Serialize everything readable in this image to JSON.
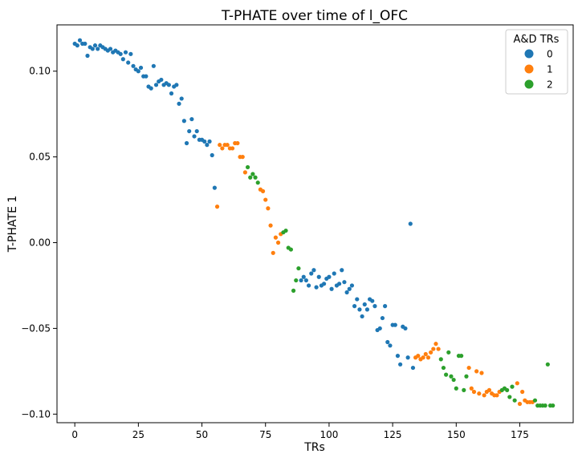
{
  "chart_data": {
    "type": "scatter",
    "title": "T-PHATE over time of l_OFC",
    "xlabel": "TRs",
    "ylabel": "T-PHATE 1",
    "xlim": [
      -7,
      196
    ],
    "ylim": [
      -0.105,
      0.127
    ],
    "xticks": [
      0,
      25,
      50,
      75,
      100,
      125,
      150,
      175
    ],
    "xtick_labels": [
      "0",
      "25",
      "50",
      "75",
      "100",
      "125",
      "150",
      "175"
    ],
    "yticks": [
      -0.1,
      -0.05,
      0.0,
      0.05,
      0.1
    ],
    "ytick_labels": [
      "−0.10",
      "−0.05",
      "0.00",
      "0.05",
      "0.10"
    ],
    "grid": false,
    "legend": {
      "title": "A&D TRs",
      "placement": "top-right"
    },
    "series": [
      {
        "name": "0",
        "color": "#1f77b4",
        "points": [
          [
            0,
            0.116
          ],
          [
            1,
            0.115
          ],
          [
            2,
            0.118
          ],
          [
            3,
            0.116
          ],
          [
            4,
            0.116
          ],
          [
            5,
            0.109
          ],
          [
            6,
            0.114
          ],
          [
            7,
            0.113
          ],
          [
            8,
            0.115
          ],
          [
            9,
            0.113
          ],
          [
            10,
            0.115
          ],
          [
            11,
            0.114
          ],
          [
            12,
            0.113
          ],
          [
            13,
            0.112
          ],
          [
            14,
            0.113
          ],
          [
            15,
            0.111
          ],
          [
            16,
            0.112
          ],
          [
            17,
            0.111
          ],
          [
            18,
            0.11
          ],
          [
            19,
            0.107
          ],
          [
            20,
            0.111
          ],
          [
            21,
            0.105
          ],
          [
            22,
            0.11
          ],
          [
            23,
            0.103
          ],
          [
            24,
            0.101
          ],
          [
            25,
            0.1
          ],
          [
            26,
            0.102
          ],
          [
            27,
            0.097
          ],
          [
            28,
            0.097
          ],
          [
            29,
            0.091
          ],
          [
            30,
            0.09
          ],
          [
            31,
            0.103
          ],
          [
            32,
            0.092
          ],
          [
            33,
            0.094
          ],
          [
            34,
            0.095
          ],
          [
            35,
            0.092
          ],
          [
            36,
            0.093
          ],
          [
            37,
            0.092
          ],
          [
            38,
            0.087
          ],
          [
            39,
            0.091
          ],
          [
            40,
            0.092
          ],
          [
            41,
            0.081
          ],
          [
            42,
            0.084
          ],
          [
            43,
            0.071
          ],
          [
            44,
            0.058
          ],
          [
            45,
            0.065
          ],
          [
            46,
            0.072
          ],
          [
            47,
            0.062
          ],
          [
            48,
            0.065
          ],
          [
            49,
            0.06
          ],
          [
            50,
            0.06
          ],
          [
            51,
            0.059
          ],
          [
            52,
            0.057
          ],
          [
            53,
            0.059
          ],
          [
            54,
            0.051
          ],
          [
            55,
            0.032
          ],
          [
            89,
            -0.022
          ],
          [
            90,
            -0.02
          ],
          [
            91,
            -0.022
          ],
          [
            92,
            -0.025
          ],
          [
            93,
            -0.018
          ],
          [
            94,
            -0.016
          ],
          [
            95,
            -0.026
          ],
          [
            96,
            -0.02
          ],
          [
            97,
            -0.025
          ],
          [
            98,
            -0.024
          ],
          [
            99,
            -0.021
          ],
          [
            100,
            -0.02
          ],
          [
            101,
            -0.027
          ],
          [
            102,
            -0.018
          ],
          [
            103,
            -0.025
          ],
          [
            104,
            -0.024
          ],
          [
            105,
            -0.016
          ],
          [
            106,
            -0.023
          ],
          [
            107,
            -0.029
          ],
          [
            108,
            -0.027
          ],
          [
            109,
            -0.025
          ],
          [
            110,
            -0.037
          ],
          [
            111,
            -0.033
          ],
          [
            112,
            -0.039
          ],
          [
            113,
            -0.043
          ],
          [
            114,
            -0.036
          ],
          [
            115,
            -0.039
          ],
          [
            116,
            -0.033
          ],
          [
            117,
            -0.034
          ],
          [
            118,
            -0.037
          ],
          [
            119,
            -0.051
          ],
          [
            120,
            -0.05
          ],
          [
            121,
            -0.044
          ],
          [
            122,
            -0.037
          ],
          [
            123,
            -0.058
          ],
          [
            124,
            -0.06
          ],
          [
            125,
            -0.048
          ],
          [
            126,
            -0.048
          ],
          [
            127,
            -0.066
          ],
          [
            128,
            -0.071
          ],
          [
            129,
            -0.049
          ],
          [
            130,
            -0.05
          ],
          [
            131,
            -0.067
          ],
          [
            132,
            0.011
          ],
          [
            133,
            -0.073
          ]
        ]
      },
      {
        "name": "1",
        "color": "#ff7f0e",
        "points": [
          [
            56,
            0.021
          ],
          [
            57,
            0.057
          ],
          [
            58,
            0.055
          ],
          [
            59,
            0.057
          ],
          [
            60,
            0.057
          ],
          [
            61,
            0.055
          ],
          [
            62,
            0.055
          ],
          [
            63,
            0.058
          ],
          [
            64,
            0.058
          ],
          [
            65,
            0.05
          ],
          [
            66,
            0.05
          ],
          [
            67,
            0.041
          ],
          [
            73,
            0.031
          ],
          [
            74,
            0.03
          ],
          [
            75,
            0.025
          ],
          [
            76,
            0.02
          ],
          [
            77,
            0.01
          ],
          [
            78,
            -0.006
          ],
          [
            79,
            0.003
          ],
          [
            80,
            0.0
          ],
          [
            81,
            0.005
          ],
          [
            134,
            -0.067
          ],
          [
            135,
            -0.066
          ],
          [
            136,
            -0.068
          ],
          [
            137,
            -0.067
          ],
          [
            138,
            -0.065
          ],
          [
            139,
            -0.067
          ],
          [
            140,
            -0.064
          ],
          [
            141,
            -0.062
          ],
          [
            142,
            -0.059
          ],
          [
            143,
            -0.062
          ],
          [
            155,
            -0.073
          ],
          [
            156,
            -0.085
          ],
          [
            157,
            -0.087
          ],
          [
            158,
            -0.075
          ],
          [
            159,
            -0.088
          ],
          [
            160,
            -0.076
          ],
          [
            161,
            -0.089
          ],
          [
            162,
            -0.087
          ],
          [
            163,
            -0.086
          ],
          [
            164,
            -0.088
          ],
          [
            165,
            -0.089
          ],
          [
            166,
            -0.089
          ],
          [
            167,
            -0.087
          ],
          [
            174,
            -0.082
          ],
          [
            175,
            -0.094
          ],
          [
            176,
            -0.087
          ],
          [
            177,
            -0.092
          ],
          [
            178,
            -0.093
          ],
          [
            179,
            -0.093
          ],
          [
            180,
            -0.093
          ]
        ]
      },
      {
        "name": "2",
        "color": "#2ca02c",
        "points": [
          [
            68,
            0.044
          ],
          [
            69,
            0.038
          ],
          [
            70,
            0.04
          ],
          [
            71,
            0.038
          ],
          [
            72,
            0.035
          ],
          [
            82,
            0.006
          ],
          [
            83,
            0.007
          ],
          [
            84,
            -0.003
          ],
          [
            85,
            -0.004
          ],
          [
            86,
            -0.028
          ],
          [
            87,
            -0.022
          ],
          [
            88,
            -0.015
          ],
          [
            144,
            -0.068
          ],
          [
            145,
            -0.073
          ],
          [
            146,
            -0.077
          ],
          [
            147,
            -0.064
          ],
          [
            148,
            -0.078
          ],
          [
            149,
            -0.08
          ],
          [
            150,
            -0.085
          ],
          [
            151,
            -0.066
          ],
          [
            152,
            -0.066
          ],
          [
            153,
            -0.086
          ],
          [
            154,
            -0.078
          ],
          [
            168,
            -0.086
          ],
          [
            169,
            -0.085
          ],
          [
            170,
            -0.086
          ],
          [
            171,
            -0.09
          ],
          [
            172,
            -0.084
          ],
          [
            173,
            -0.092
          ],
          [
            181,
            -0.092
          ],
          [
            182,
            -0.095
          ],
          [
            183,
            -0.095
          ],
          [
            184,
            -0.095
          ],
          [
            185,
            -0.095
          ],
          [
            186,
            -0.071
          ],
          [
            187,
            -0.095
          ],
          [
            188,
            -0.095
          ]
        ]
      }
    ]
  }
}
